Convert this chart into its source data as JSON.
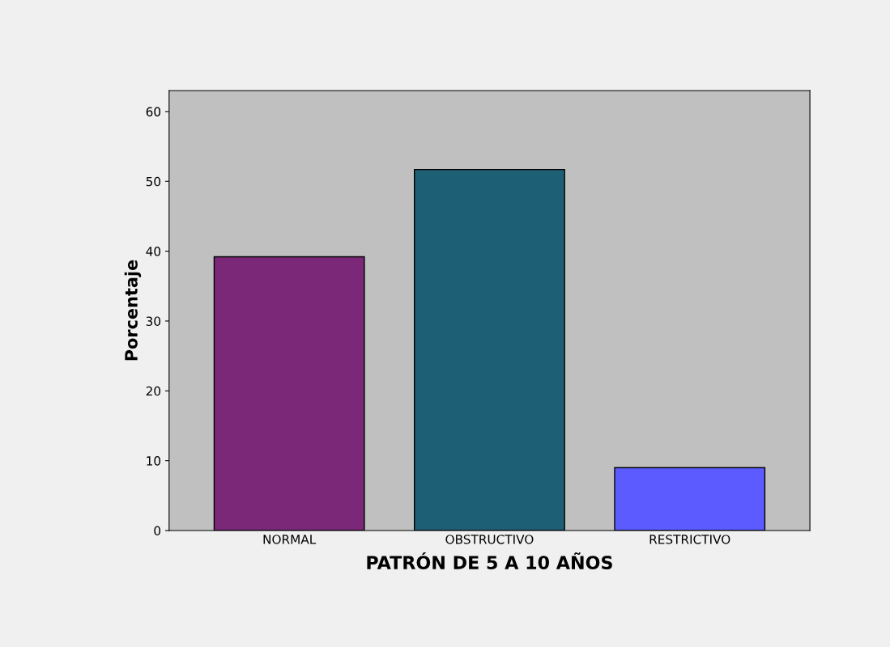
{
  "chart_data": {
    "type": "bar",
    "xlabel": "PATRÓN DE 5 A 10 AÑOS",
    "ylabel": "Porcentaje",
    "categories": [
      "NORMAL",
      "OBSTRUCTIVO",
      "RESTRICTIVO"
    ],
    "values": [
      39.2,
      51.7,
      9.0
    ],
    "colors": [
      "#7b2878",
      "#1d5f75",
      "#5b5bff"
    ],
    "ylim": [
      0,
      63
    ],
    "yticks": [
      0,
      10,
      20,
      30,
      40,
      50,
      60
    ],
    "grid": false
  }
}
